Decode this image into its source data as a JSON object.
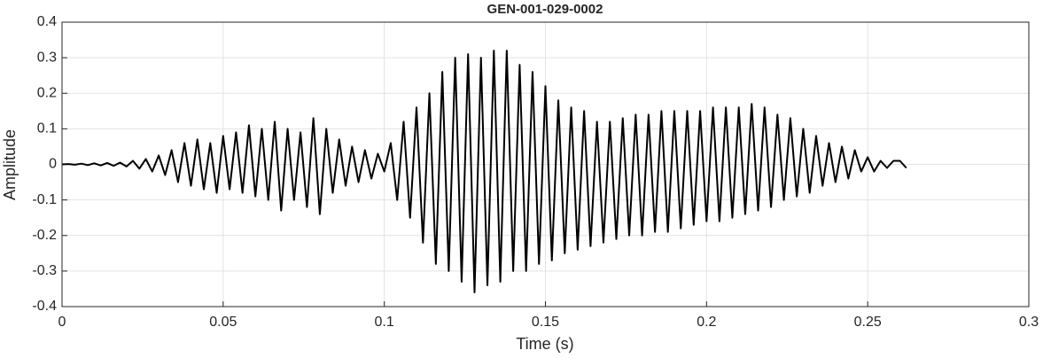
{
  "chart_data": {
    "type": "line",
    "title": "GEN-001-029-0002",
    "x_label": "Time (s)",
    "y_label": "Amplitude",
    "x": [
      0,
      0.002,
      0.004,
      0.006,
      0.008,
      0.01,
      0.012,
      0.014,
      0.016,
      0.018,
      0.02,
      0.022,
      0.024,
      0.026,
      0.028,
      0.03,
      0.032,
      0.034,
      0.036,
      0.038,
      0.04,
      0.042,
      0.044,
      0.046,
      0.048,
      0.05,
      0.052,
      0.054,
      0.056,
      0.058,
      0.06,
      0.062,
      0.064,
      0.066,
      0.068,
      0.07,
      0.072,
      0.074,
      0.076,
      0.078,
      0.08,
      0.082,
      0.084,
      0.086,
      0.088,
      0.09,
      0.092,
      0.094,
      0.096,
      0.098,
      0.1,
      0.102,
      0.104,
      0.106,
      0.108,
      0.11,
      0.112,
      0.114,
      0.116,
      0.118,
      0.12,
      0.122,
      0.124,
      0.126,
      0.128,
      0.13,
      0.132,
      0.134,
      0.136,
      0.138,
      0.14,
      0.142,
      0.144,
      0.146,
      0.148,
      0.15,
      0.152,
      0.154,
      0.156,
      0.158,
      0.16,
      0.162,
      0.164,
      0.166,
      0.168,
      0.17,
      0.172,
      0.174,
      0.176,
      0.178,
      0.18,
      0.182,
      0.184,
      0.186,
      0.188,
      0.19,
      0.192,
      0.194,
      0.196,
      0.198,
      0.2,
      0.202,
      0.204,
      0.206,
      0.208,
      0.21,
      0.212,
      0.214,
      0.216,
      0.218,
      0.22,
      0.222,
      0.224,
      0.226,
      0.228,
      0.23,
      0.232,
      0.234,
      0.236,
      0.238,
      0.24,
      0.242,
      0.244,
      0.246,
      0.248,
      0.25,
      0.252,
      0.254,
      0.256,
      0.258,
      0.26,
      0.262
    ],
    "values": [
      0,
      0.001,
      -0.001,
      0.002,
      -0.002,
      0.003,
      -0.003,
      0.004,
      -0.004,
      0.005,
      -0.006,
      0.01,
      -0.012,
      0.015,
      -0.02,
      0.025,
      -0.03,
      0.04,
      -0.05,
      0.06,
      -0.06,
      0.07,
      -0.07,
      0.06,
      -0.08,
      0.08,
      -0.07,
      0.09,
      -0.08,
      0.11,
      -0.09,
      0.1,
      -0.1,
      0.12,
      -0.13,
      0.1,
      -0.1,
      0.09,
      -0.12,
      0.13,
      -0.14,
      0.1,
      -0.08,
      0.07,
      -0.06,
      0.05,
      -0.05,
      0.04,
      -0.04,
      0.03,
      -0.02,
      0.06,
      -0.1,
      0.12,
      -0.15,
      0.16,
      -0.22,
      0.2,
      -0.28,
      0.26,
      -0.3,
      0.3,
      -0.33,
      0.31,
      -0.36,
      0.3,
      -0.34,
      0.32,
      -0.33,
      0.32,
      -0.3,
      0.28,
      -0.3,
      0.26,
      -0.28,
      0.22,
      -0.27,
      0.18,
      -0.25,
      0.16,
      -0.24,
      0.15,
      -0.23,
      0.12,
      -0.22,
      0.12,
      -0.21,
      0.13,
      -0.2,
      0.14,
      -0.2,
      0.14,
      -0.19,
      0.15,
      -0.19,
      0.15,
      -0.18,
      0.15,
      -0.17,
      0.15,
      -0.16,
      0.16,
      -0.16,
      0.16,
      -0.15,
      0.16,
      -0.14,
      0.17,
      -0.13,
      0.16,
      -0.12,
      0.14,
      -0.1,
      0.13,
      -0.09,
      0.1,
      -0.08,
      0.08,
      -0.06,
      0.06,
      -0.05,
      0.05,
      -0.04,
      0.04,
      -0.02,
      0.02,
      -0.02,
      0.01,
      -0.01,
      0.01,
      0.01,
      -0.01
    ],
    "color": "#000000",
    "xlim": [
      0,
      0.3
    ],
    "xticks": [
      0,
      0.05,
      0.1,
      0.15,
      0.2,
      0.25,
      0.3
    ],
    "ylim": [
      -0.4,
      0.4
    ],
    "yticks": [
      -0.4,
      -0.3,
      -0.2,
      -0.1,
      0,
      0.1,
      0.2,
      0.3,
      0.4
    ],
    "grid": true
  }
}
